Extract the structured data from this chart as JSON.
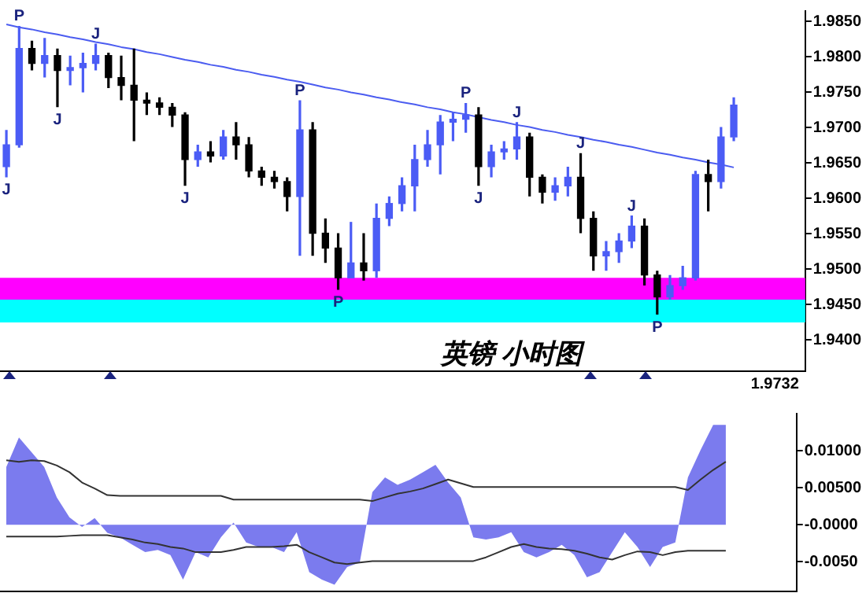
{
  "chart_data": [
    {
      "type": "candlestick",
      "title": "英镑 小时图",
      "categories": [
        null,
        null,
        null,
        null,
        null,
        null,
        null,
        null,
        null,
        null,
        null,
        null,
        null,
        null,
        null,
        null,
        null,
        null,
        null,
        null,
        null,
        null,
        null,
        null,
        null,
        null,
        null,
        null,
        null,
        null,
        null,
        null,
        null,
        null,
        null,
        null,
        null,
        null,
        null,
        null,
        null,
        null,
        null,
        null,
        null,
        null,
        null,
        null,
        null,
        null,
        null,
        null,
        null,
        null,
        null,
        null,
        null,
        null
      ],
      "ohlc": [
        [
          1.9645,
          1.9697,
          1.963,
          1.9676
        ],
        [
          1.9676,
          1.9844,
          1.9672,
          1.9812
        ],
        [
          1.9812,
          1.9823,
          1.9781,
          1.9791
        ],
        [
          1.9791,
          1.9827,
          1.9771,
          1.9802
        ],
        [
          1.9802,
          1.9812,
          1.9729,
          1.9781
        ],
        [
          1.9781,
          1.9802,
          1.976,
          1.9785
        ],
        [
          1.9785,
          1.9806,
          1.975,
          1.9791
        ],
        [
          1.9791,
          1.9819,
          1.9781,
          1.9802
        ],
        [
          1.9802,
          1.9806,
          1.9756,
          1.9771
        ],
        [
          1.9771,
          1.9802,
          1.9739,
          1.976
        ],
        [
          1.976,
          1.9812,
          1.9681,
          1.9739
        ],
        [
          1.9739,
          1.975,
          1.9718,
          1.9735
        ],
        [
          1.9735,
          1.9743,
          1.9718,
          1.9729
        ],
        [
          1.9729,
          1.9735,
          1.9701,
          1.9718
        ],
        [
          1.9718,
          1.9722,
          1.9618,
          1.9655
        ],
        [
          1.9655,
          1.9676,
          1.9645,
          1.9666
        ],
        [
          1.9666,
          1.9681,
          1.9651,
          1.966
        ],
        [
          1.966,
          1.9697,
          1.9655,
          1.9687
        ],
        [
          1.9687,
          1.9708,
          1.9655,
          1.9676
        ],
        [
          1.9676,
          1.9687,
          1.963,
          1.9639
        ],
        [
          1.9639,
          1.9645,
          1.9618,
          1.963
        ],
        [
          1.963,
          1.9639,
          1.9614,
          1.9624
        ],
        [
          1.9624,
          1.963,
          1.9582,
          1.9603
        ],
        [
          1.9603,
          1.9739,
          1.9519,
          1.9697
        ],
        [
          1.9697,
          1.9708,
          1.9519,
          1.9551
        ],
        [
          1.9551,
          1.9572,
          1.9509,
          1.953
        ],
        [
          1.953,
          1.9551,
          1.9471,
          1.9488
        ],
        [
          1.9488,
          1.9567,
          1.9488,
          1.9509
        ],
        [
          1.9509,
          1.9551,
          1.9484,
          1.9498
        ],
        [
          1.9498,
          1.9593,
          1.9488,
          1.9572
        ],
        [
          1.9572,
          1.9603,
          1.9561,
          1.9593
        ],
        [
          1.9593,
          1.963,
          1.9582,
          1.9618
        ],
        [
          1.9618,
          1.9676,
          1.9582,
          1.9655
        ],
        [
          1.9655,
          1.9697,
          1.9645,
          1.9676
        ],
        [
          1.9676,
          1.9718,
          1.9634,
          1.9708
        ],
        [
          1.9708,
          1.9722,
          1.9681,
          1.9712
        ],
        [
          1.9712,
          1.9735,
          1.9693,
          1.9718
        ],
        [
          1.9718,
          1.9729,
          1.9618,
          1.9645
        ],
        [
          1.9645,
          1.9676,
          1.963,
          1.9666
        ],
        [
          1.9666,
          1.9681,
          1.9655,
          1.967
        ],
        [
          1.967,
          1.9708,
          1.9655,
          1.9687
        ],
        [
          1.9687,
          1.9693,
          1.9603,
          1.963
        ],
        [
          1.963,
          1.9634,
          1.9593,
          1.9609
        ],
        [
          1.9609,
          1.963,
          1.9597,
          1.9618
        ],
        [
          1.9618,
          1.9645,
          1.9603,
          1.963
        ],
        [
          1.963,
          1.9664,
          1.9551,
          1.9572
        ],
        [
          1.9572,
          1.9582,
          1.9498,
          1.9519
        ],
        [
          1.9519,
          1.954,
          1.9498,
          1.9525
        ],
        [
          1.9525,
          1.9551,
          1.9509,
          1.954
        ],
        [
          1.954,
          1.9576,
          1.953,
          1.9561
        ],
        [
          1.9561,
          1.9572,
          1.9477,
          1.9492
        ],
        [
          1.9492,
          1.9498,
          1.9436,
          1.9461
        ],
        [
          1.9461,
          1.9492,
          1.9457,
          1.9477
        ],
        [
          1.9477,
          1.9505,
          1.9471,
          1.9488
        ],
        [
          1.9488,
          1.9639,
          1.9484,
          1.9634
        ],
        [
          1.9634,
          1.9655,
          1.9582,
          1.9624
        ],
        [
          1.9624,
          1.9701,
          1.9614,
          1.9687
        ],
        [
          1.9687,
          1.9743,
          1.9681,
          1.9732
        ]
      ],
      "value_labels": [
        "J",
        "P",
        null,
        null,
        "J",
        null,
        null,
        "J",
        null,
        null,
        null,
        null,
        null,
        null,
        "J",
        null,
        null,
        null,
        null,
        null,
        null,
        null,
        null,
        "P",
        null,
        null,
        "P",
        null,
        null,
        null,
        null,
        null,
        null,
        null,
        null,
        null,
        "P",
        "J",
        null,
        null,
        "J",
        null,
        null,
        null,
        null,
        "J",
        null,
        null,
        null,
        "J",
        null,
        "P",
        null,
        null,
        null,
        null,
        null,
        null
      ],
      "series": [
        {
          "type": "line",
          "color": "#4b5cf0",
          "values": [
            1.9846,
            1.9842,
            1.9839,
            1.9835,
            1.9832,
            1.9828,
            1.9825,
            1.9821,
            1.9818,
            1.9814,
            1.9811,
            1.9807,
            1.9804,
            1.98,
            1.9796,
            1.9793,
            1.9789,
            1.9786,
            1.9782,
            1.9779,
            1.9775,
            1.9772,
            1.9768,
            1.9765,
            1.9761,
            1.9757,
            1.9754,
            1.975,
            1.9747,
            1.9743,
            1.974,
            1.9736,
            1.9733,
            1.9729,
            1.9726,
            1.9722,
            1.9719,
            1.9715,
            1.9711,
            1.9708,
            1.9704,
            1.9701,
            1.9697,
            1.9694,
            1.969,
            1.9687,
            1.9683,
            1.968,
            1.9676,
            1.9673,
            1.9669,
            1.9665,
            1.9662,
            1.9658,
            1.9655,
            1.9651,
            1.9648,
            1.9644
          ]
        }
      ],
      "bands": [
        {
          "axis": "y",
          "from": 1.9457,
          "to": 1.9488,
          "color": "#ff00ff"
        },
        {
          "axis": "y",
          "from": 1.9425,
          "to": 1.9457,
          "color": "#00ffff"
        }
      ],
      "ylim": [
        1.9356,
        1.9865
      ],
      "yticks": [
        {
          "value": 1.94,
          "label": "1.9400"
        },
        {
          "value": 1.945,
          "label": "1.9450"
        },
        {
          "value": 1.95,
          "label": "1.9500"
        },
        {
          "value": 1.955,
          "label": "1.9550"
        },
        {
          "value": 1.96,
          "label": "1.9600"
        },
        {
          "value": 1.965,
          "label": "1.9650"
        },
        {
          "value": 1.97,
          "label": "1.9700"
        },
        {
          "value": 1.975,
          "label": "1.9750"
        },
        {
          "value": 1.98,
          "label": "1.9800"
        },
        {
          "value": 1.985,
          "label": "1.9850"
        }
      ],
      "tick_labels": "y",
      "annotations": [
        "1.9732"
      ]
    },
    {
      "type": "line",
      "categories": [
        null,
        null,
        null,
        null,
        null,
        null,
        null,
        null,
        null,
        null,
        null,
        null,
        null,
        null,
        null,
        null,
        null,
        null,
        null,
        null,
        null,
        null,
        null,
        null,
        null,
        null,
        null,
        null,
        null,
        null,
        null,
        null,
        null,
        null,
        null,
        null,
        null,
        null,
        null,
        null,
        null,
        null,
        null,
        null,
        null,
        null,
        null,
        null,
        null,
        null,
        null,
        null,
        null,
        null,
        null,
        null,
        null,
        null
      ],
      "series": [
        {
          "type": "area",
          "color": "#7b7bee",
          "values": [
            0.0078,
            0.0118,
            0.0098,
            0.0078,
            0.0037,
            0.001,
            -0.0003,
            0.0009,
            -0.0011,
            -0.0017,
            -0.0027,
            -0.0037,
            -0.0034,
            -0.0041,
            -0.0074,
            -0.0037,
            -0.0044,
            -0.0017,
            0.0003,
            -0.0024,
            -0.003,
            -0.003,
            -0.0037,
            -0.001,
            -0.0064,
            -0.0074,
            -0.0081,
            -0.0057,
            -0.0051,
            0.0044,
            0.0064,
            0.0054,
            0.0061,
            0.0071,
            0.0081,
            0.0057,
            0.0037,
            -0.0017,
            -0.002,
            -0.0017,
            -0.001,
            -0.0037,
            -0.0044,
            -0.0037,
            -0.0027,
            -0.0041,
            -0.0071,
            -0.0064,
            -0.0037,
            -0.001,
            -0.003,
            -0.0057,
            -0.003,
            -0.0024,
            0.0064,
            0.0101,
            0.0135,
            0.0135
          ]
        },
        {
          "color": "#333333",
          "values": [
            0.0087,
            0.0085,
            0.0087,
            0.0086,
            0.008,
            0.0071,
            0.0057,
            0.0049,
            0.004,
            0.0039,
            0.0039,
            0.0039,
            0.0039,
            0.0039,
            0.0039,
            0.0039,
            0.0039,
            0.0039,
            0.0034,
            0.0034,
            0.0034,
            0.0034,
            0.0034,
            0.0034,
            0.0034,
            0.0034,
            0.0034,
            0.0034,
            0.0034,
            0.0032,
            0.0037,
            0.0042,
            0.0045,
            0.0049,
            0.0055,
            0.0061,
            0.0056,
            0.0051,
            0.0051,
            0.0051,
            0.0051,
            0.0051,
            0.0051,
            0.0051,
            0.0051,
            0.0051,
            0.0051,
            0.0051,
            0.0051,
            0.0051,
            0.0051,
            0.0051,
            0.0051,
            0.0051,
            0.0047,
            0.0061,
            0.0074,
            0.0085
          ]
        },
        {
          "color": "#333333",
          "values": [
            -0.0016,
            -0.0016,
            -0.0016,
            -0.0016,
            -0.0016,
            -0.0015,
            -0.0014,
            -0.0014,
            -0.0014,
            -0.0017,
            -0.002,
            -0.0024,
            -0.0026,
            -0.003,
            -0.0032,
            -0.0037,
            -0.0037,
            -0.0037,
            -0.0034,
            -0.003,
            -0.003,
            -0.003,
            -0.0029,
            -0.0027,
            -0.0037,
            -0.0044,
            -0.0051,
            -0.0053,
            -0.0051,
            -0.0049,
            -0.0049,
            -0.0049,
            -0.0049,
            -0.0049,
            -0.0049,
            -0.0049,
            -0.0049,
            -0.0049,
            -0.0044,
            -0.0037,
            -0.003,
            -0.0026,
            -0.003,
            -0.0032,
            -0.0033,
            -0.0035,
            -0.0039,
            -0.0044,
            -0.0047,
            -0.0041,
            -0.0036,
            -0.0037,
            -0.0041,
            -0.0037,
            -0.0035,
            -0.0035,
            -0.0035,
            -0.0035
          ]
        }
      ],
      "ylim": [
        -0.009,
        0.015
      ],
      "yticks": [
        {
          "value": -0.005,
          "label": "-0.0050"
        },
        {
          "value": 0,
          "label": "-0.0000"
        },
        {
          "value": 0.005,
          "label": "0.00500"
        },
        {
          "value": 0.01,
          "label": "0.01000"
        }
      ],
      "tick_labels": "y"
    }
  ]
}
